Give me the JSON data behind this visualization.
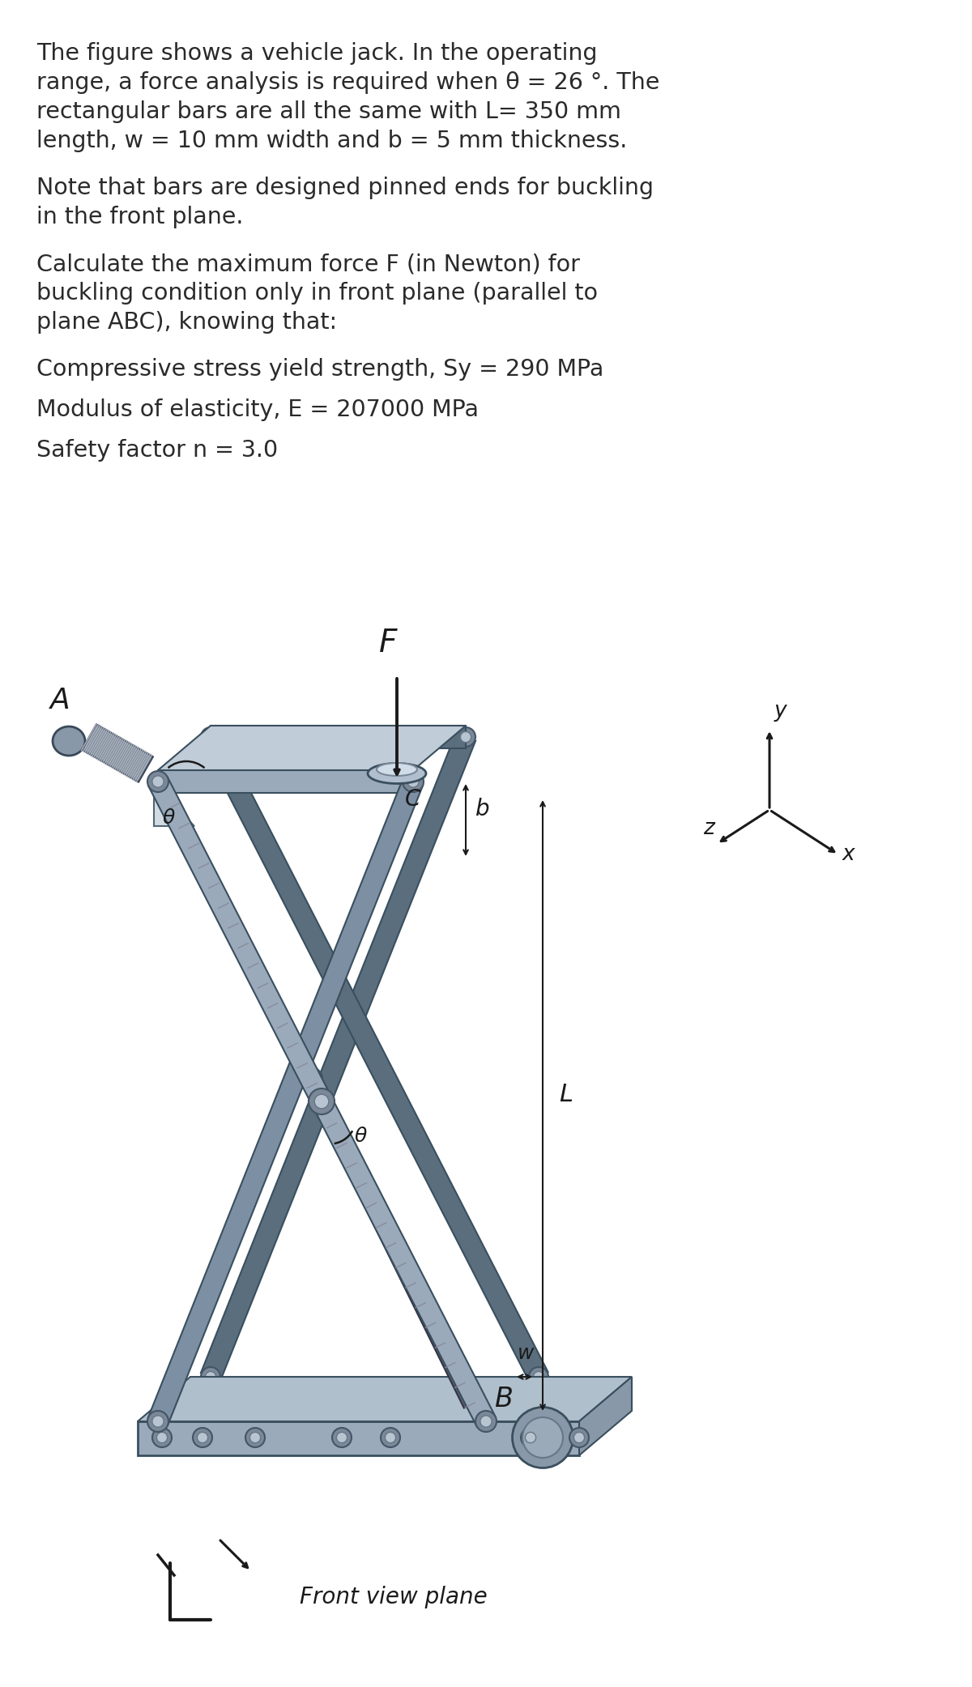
{
  "bg_color": "#ffffff",
  "text_color": "#2a2a2a",
  "para1_lines": [
    "The figure shows a vehicle jack. In the operating",
    "range, a force analysis is required when θ = 26 °. The",
    "rectangular bars are all the same with L= 350 mm",
    "length, w = 10 mm width and b = 5 mm thickness."
  ],
  "para2_lines": [
    "Note that bars are designed pinned ends for buckling",
    "in the front plane."
  ],
  "para3_lines": [
    "Calculate the maximum force F (in Newton) for",
    "buckling condition only in front plane (parallel to",
    "plane ABC), knowing that:"
  ],
  "single_lines": [
    "Compressive stress yield strength, Sy = 290 MPa",
    "Modulus of elasticity, E = 207000 MPa",
    "Safety factor n = 3.0"
  ],
  "font_size": 20.5,
  "bar_color": "#7d8fa3",
  "bar_light": "#9aaabb",
  "bar_dark": "#5a6e7e",
  "bar_edge": "#3a4f5e",
  "plate_color": "#9aaabb",
  "bolt_outer": "#7a8898",
  "bolt_inner": "#b8c5d0",
  "thread_color": "#555566",
  "thread_light": "#8898a8",
  "dark": "#1a1a1a",
  "rod_color": "#555566"
}
